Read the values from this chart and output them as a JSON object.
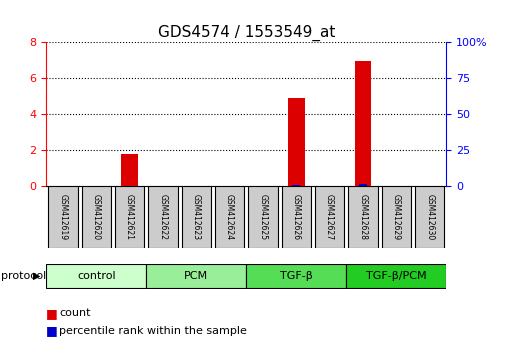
{
  "title": "GDS4574 / 1553549_at",
  "samples": [
    "GSM412619",
    "GSM412620",
    "GSM412621",
    "GSM412622",
    "GSM412623",
    "GSM412624",
    "GSM412625",
    "GSM412626",
    "GSM412627",
    "GSM412628",
    "GSM412629",
    "GSM412630"
  ],
  "count_values": [
    0,
    0,
    1.8,
    0,
    0,
    0,
    0,
    4.9,
    0,
    6.95,
    0,
    0
  ],
  "percentile_values": [
    0,
    0,
    0.3,
    0,
    0,
    0.08,
    0,
    1.05,
    0,
    1.25,
    0,
    0
  ],
  "ylim_left": [
    0,
    8
  ],
  "ylim_right": [
    0,
    100
  ],
  "yticks_left": [
    0,
    2,
    4,
    6,
    8
  ],
  "yticks_right": [
    0,
    25,
    50,
    75,
    100
  ],
  "ytick_labels_right": [
    "0",
    "25",
    "50",
    "75",
    "100%"
  ],
  "count_color": "#dd0000",
  "percentile_color": "#0000cc",
  "bg_color": "#ffffff",
  "protocol_groups": [
    {
      "label": "control",
      "start": 0,
      "end": 2,
      "color": "#ccffcc"
    },
    {
      "label": "PCM",
      "start": 3,
      "end": 5,
      "color": "#99ee99"
    },
    {
      "label": "TGF-β",
      "start": 6,
      "end": 8,
      "color": "#55dd55"
    },
    {
      "label": "TGF-β/PCM",
      "start": 9,
      "end": 11,
      "color": "#22cc22"
    }
  ],
  "sample_box_color": "#cccccc",
  "sample_box_edge": "#000000",
  "protocol_label": "protocol",
  "legend_count": "count",
  "legend_percentile": "percentile rank within the sample"
}
